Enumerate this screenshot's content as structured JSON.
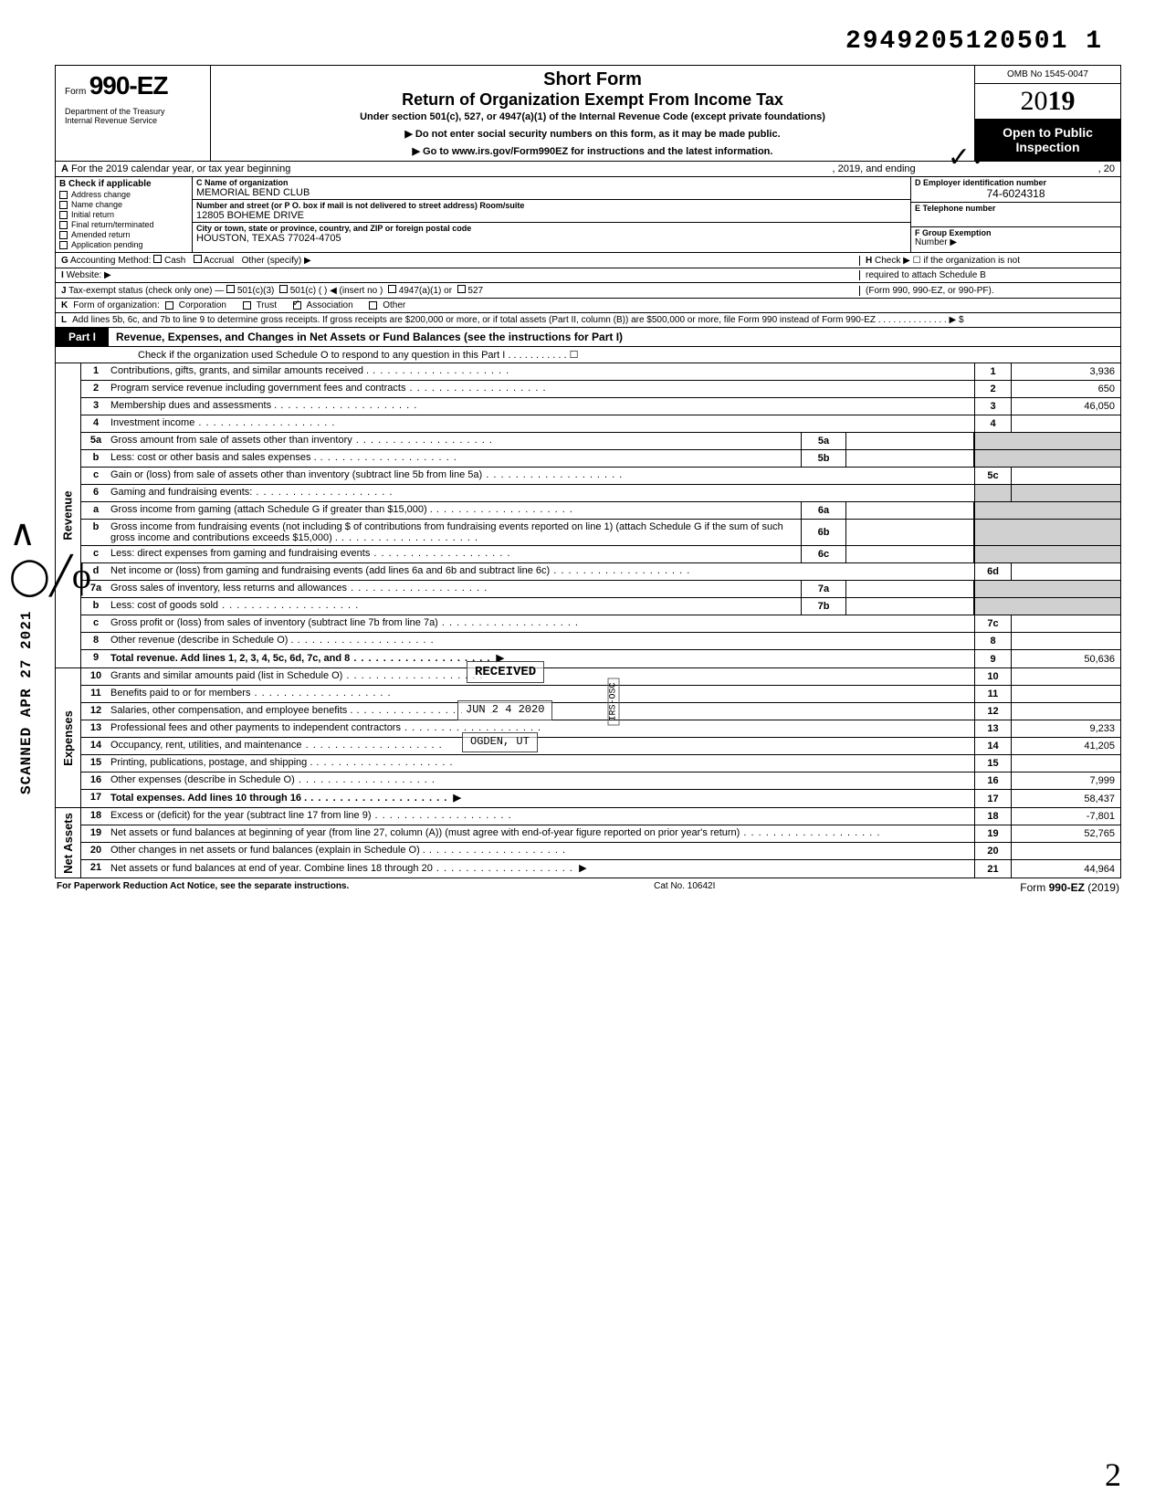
{
  "doc_id": "2949205120501 1",
  "omb": "OMB No 1545-0047",
  "form": {
    "prefix": "Form",
    "number": "990-EZ"
  },
  "dept": "Department of the Treasury\nInternal Revenue Service",
  "title": {
    "line1": "Short Form",
    "line2": "Return of Organization Exempt From Income Tax",
    "line3": "Under section 501(c), 527, or 4947(a)(1) of the Internal Revenue Code (except private foundations)",
    "arrow1": "▶ Do not enter social security numbers on this form, as it may be made public.",
    "arrow2": "▶ Go to www.irs.gov/Form990EZ for instructions and the latest information."
  },
  "year": "2019",
  "open_public": {
    "l1": "Open to Public",
    "l2": "Inspection"
  },
  "row_a": {
    "tag": "A",
    "text": "For the 2019 calendar year, or tax year beginning",
    "mid": ", 2019, and ending",
    "end": ", 20"
  },
  "b": {
    "hdr": "B  Check if applicable",
    "items": [
      "Address change",
      "Name change",
      "Initial return",
      "Final return/terminated",
      "Amended return",
      "Application pending"
    ]
  },
  "c": {
    "name_lbl": "C  Name of organization",
    "name_val": "MEMORIAL BEND CLUB",
    "addr_lbl": "Number and street (or P O. box if mail is not delivered to street address)            Room/suite",
    "addr_val": "12805 BOHEME DRIVE",
    "city_lbl": "City or town, state or province, country, and ZIP or foreign postal code",
    "city_val": "HOUSTON, TEXAS  77024-4705"
  },
  "d": {
    "lbl": "D Employer identification number",
    "val": "74-6024318"
  },
  "e": {
    "lbl": "E Telephone number",
    "val": ""
  },
  "f": {
    "lbl": "F Group Exemption",
    "lbl2": "Number ▶",
    "val": ""
  },
  "g": {
    "tag": "G",
    "text": "Accounting Method:",
    "opts": [
      "Cash",
      "Accrual"
    ],
    "other": "Other (specify) ▶"
  },
  "h": {
    "tag": "H",
    "text1": "Check ▶ ☐ if the organization is not",
    "text2": "required to attach Schedule B",
    "text3": "(Form 990, 990-EZ, or 990-PF)."
  },
  "i": {
    "tag": "I",
    "text": "Website: ▶"
  },
  "j": {
    "tag": "J",
    "text": "Tax-exempt status (check only one) —",
    "opts": [
      "501(c)(3)",
      "501(c) (        ) ◀ (insert no )",
      "4947(a)(1) or",
      "527"
    ]
  },
  "k": {
    "tag": "K",
    "text": "Form of organization:",
    "opts": [
      "Corporation",
      "Trust",
      "Association",
      "Other"
    ],
    "checked": 2
  },
  "l": {
    "tag": "L",
    "text": "Add lines 5b, 6c, and 7b to line 9 to determine gross receipts. If gross receipts are $200,000 or more, or if total assets (Part II, column (B)) are $500,000 or more, file Form 990 instead of Form 990-EZ .   .   .   .   .   .   .   .   .   .   .   .   .   .   ▶  $"
  },
  "part1": {
    "badge": "Part I",
    "title": "Revenue, Expenses, and Changes in Net Assets or Fund Balances (see the instructions for Part I)",
    "sub": "Check if the organization used Schedule O to respond to any question in this Part I .   .   .   .   .   .   .   .   .   .   .   ☐"
  },
  "sections": {
    "revenue": "Revenue",
    "expenses": "Expenses",
    "netassets": "Net Assets"
  },
  "lines": [
    {
      "n": "1",
      "d": "Contributions, gifts, grants, and similar amounts received .",
      "end": "1",
      "val": "3,936"
    },
    {
      "n": "2",
      "d": "Program service revenue including government fees and contracts",
      "end": "2",
      "val": "650"
    },
    {
      "n": "3",
      "d": "Membership dues and assessments .",
      "end": "3",
      "val": "46,050"
    },
    {
      "n": "4",
      "d": "Investment income",
      "end": "4",
      "val": ""
    },
    {
      "n": "5a",
      "d": "Gross amount from sale of assets other than inventory",
      "mid": "5a",
      "midval": ""
    },
    {
      "n": "b",
      "d": "Less: cost or other basis and sales expenses .",
      "mid": "5b",
      "midval": ""
    },
    {
      "n": "c",
      "d": "Gain or (loss) from sale of assets other than inventory (subtract line 5b from line 5a)",
      "end": "5c",
      "val": ""
    },
    {
      "n": "6",
      "d": "Gaming and fundraising events:"
    },
    {
      "n": "a",
      "d": "Gross income from gaming (attach Schedule G if greater than $15,000) .",
      "mid": "6a",
      "midval": ""
    },
    {
      "n": "b",
      "d": "Gross income from fundraising events (not including  $                      of contributions from fundraising events reported on line 1) (attach Schedule G if the sum of such gross income and contributions exceeds $15,000) .",
      "mid": "6b",
      "midval": ""
    },
    {
      "n": "c",
      "d": "Less: direct expenses from gaming and fundraising events",
      "mid": "6c",
      "midval": ""
    },
    {
      "n": "d",
      "d": "Net income or (loss) from gaming and fundraising events (add lines 6a and 6b and subtract line 6c)",
      "end": "6d",
      "val": ""
    },
    {
      "n": "7a",
      "d": "Gross sales of inventory, less returns and allowances",
      "mid": "7a",
      "midval": ""
    },
    {
      "n": "b",
      "d": "Less: cost of goods sold",
      "mid": "7b",
      "midval": ""
    },
    {
      "n": "c",
      "d": "Gross profit or (loss) from sales of inventory (subtract line 7b from line 7a)",
      "end": "7c",
      "val": ""
    },
    {
      "n": "8",
      "d": "Other revenue (describe in Schedule O) .",
      "end": "8",
      "val": ""
    },
    {
      "n": "9",
      "d": "Total revenue. Add lines 1, 2, 3, 4, 5c, 6d, 7c, and 8",
      "end": "9",
      "val": "50,636",
      "bold": true,
      "arrow": true
    }
  ],
  "exp_lines": [
    {
      "n": "10",
      "d": "Grants and similar amounts paid (list in Schedule O)",
      "end": "10",
      "val": ""
    },
    {
      "n": "11",
      "d": "Benefits paid to or for members",
      "end": "11",
      "val": ""
    },
    {
      "n": "12",
      "d": "Salaries, other compensation, and employee benefits .",
      "end": "12",
      "val": ""
    },
    {
      "n": "13",
      "d": "Professional fees and other payments to independent contractors",
      "end": "13",
      "val": "9,233"
    },
    {
      "n": "14",
      "d": "Occupancy, rent, utilities, and maintenance",
      "end": "14",
      "val": "41,205"
    },
    {
      "n": "15",
      "d": "Printing, publications, postage, and shipping .",
      "end": "15",
      "val": ""
    },
    {
      "n": "16",
      "d": "Other expenses (describe in Schedule O)",
      "end": "16",
      "val": "7,999"
    },
    {
      "n": "17",
      "d": "Total expenses. Add lines 10 through 16 .",
      "end": "17",
      "val": "58,437",
      "bold": true,
      "arrow": true
    }
  ],
  "na_lines": [
    {
      "n": "18",
      "d": "Excess or (deficit) for the year (subtract line 17 from line 9)",
      "end": "18",
      "val": "-7,801"
    },
    {
      "n": "19",
      "d": "Net assets or fund balances at beginning of year (from line 27, column (A)) (must agree with end-of-year figure reported on prior year's return)",
      "end": "19",
      "val": "52,765"
    },
    {
      "n": "20",
      "d": "Other changes in net assets or fund balances (explain in Schedule O) .",
      "end": "20",
      "val": ""
    },
    {
      "n": "21",
      "d": "Net assets or fund balances at end of year. Combine lines 18 through 20",
      "end": "21",
      "val": "44,964",
      "arrow": true
    }
  ],
  "footer": {
    "left": "For Paperwork Reduction Act Notice, see the separate instructions.",
    "mid": "Cat No. 10642I",
    "right": "Form 990-EZ (2019)"
  },
  "scanned": "SCANNED APR 27 2021",
  "stamp_received": "RECEIVED",
  "stamp_date": "JUN 2 4 2020",
  "stamp_ogden": "OGDEN, UT",
  "stamp_side": "IRS-OSC",
  "initials": "✓"
}
